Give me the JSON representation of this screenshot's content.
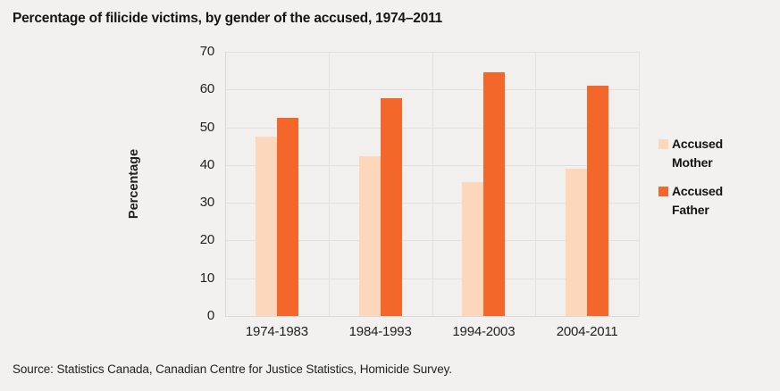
{
  "title": "Percentage of filicide victims, by gender of the accused, 1974–2011",
  "source": "Source: Statistics Canada, Canadian Centre for Justice Statistics, Homicide Survey.",
  "colors": {
    "accused_mother": "#FCD7BC",
    "accused_father": "#F3682A",
    "background": "#F2F1F0",
    "gridline": "#E2E1E0",
    "axis_line": "#DAD9D8",
    "text": "#1F1F1F"
  },
  "chart_data": {
    "type": "bar",
    "categories": [
      "1974-1983",
      "1984-1993",
      "1994-2003",
      "2004-2011"
    ],
    "series": [
      {
        "name": "Accused Mother",
        "color": "#FCD7BC",
        "values": [
          47.5,
          42.4,
          35.5,
          39
        ]
      },
      {
        "name": "Accused Father",
        "color": "#F3682A",
        "values": [
          52.5,
          57.6,
          64.5,
          61
        ]
      }
    ],
    "title": "Percentage of filicide victims, by gender of the accused, 1974–2011",
    "xlabel": "",
    "ylabel": "Percentage",
    "ylim": [
      0,
      70
    ],
    "ytick_step": 10,
    "yticks": [
      0,
      10,
      20,
      30,
      40,
      50,
      60,
      70
    ],
    "grid": true,
    "legend_position": "right"
  },
  "legend": {
    "items": [
      {
        "label": "Accused Mother"
      },
      {
        "label": "Accused Father"
      }
    ]
  }
}
